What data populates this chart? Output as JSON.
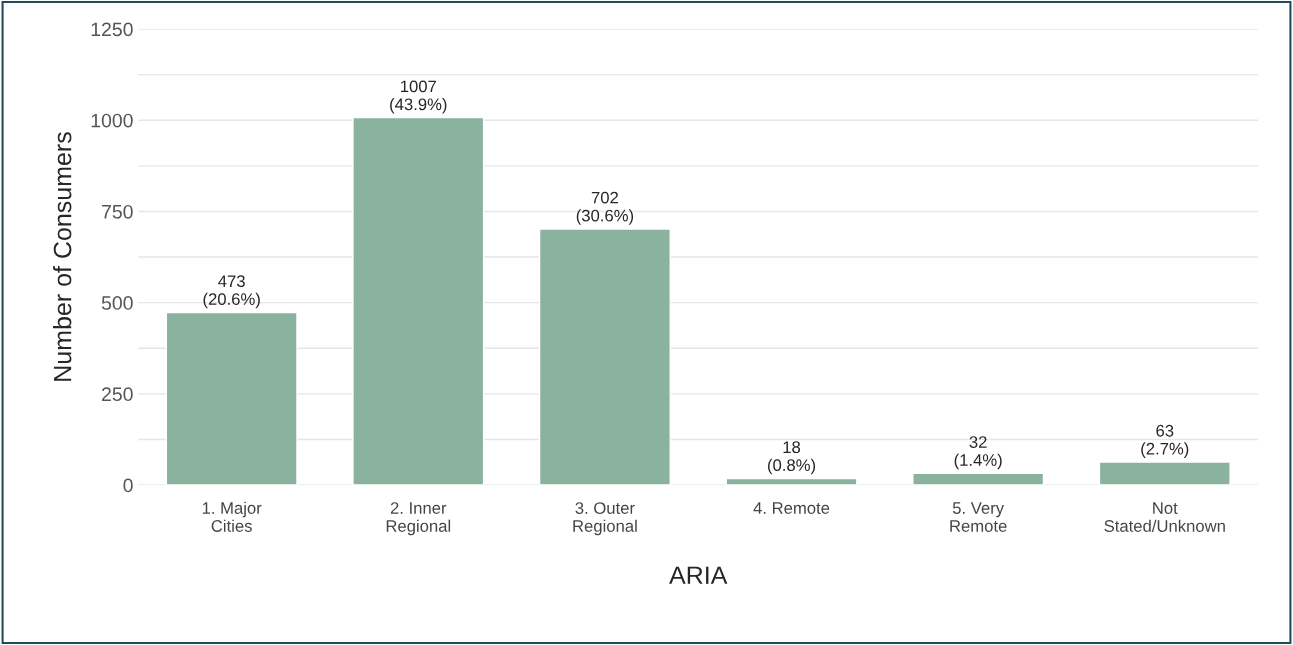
{
  "chart_data": {
    "type": "bar",
    "categories": [
      "1. Major\nCities",
      "2. Inner\nRegional",
      "3. Outer\nRegional",
      "4. Remote",
      "5. Very\nRemote",
      "Not\nStated/Unknown"
    ],
    "values": [
      473,
      1007,
      702,
      18,
      32,
      63
    ],
    "value_labels": [
      "473\n(20.6%)",
      "1007\n(43.9%)",
      "702\n(30.6%)",
      "18\n(0.8%)",
      "32\n(1.4%)",
      "63\n(2.7%)"
    ],
    "color": "#8ab29e",
    "xlabel": "ARIA",
    "ylabel": "Number of Consumers",
    "ylim": [
      0,
      1250
    ],
    "yticks": [
      0,
      {
        "value": 125,
        "label": null
      },
      250,
      {
        "value": 375,
        "label": null
      },
      500,
      {
        "value": 625,
        "label": null
      },
      750,
      {
        "value": 875,
        "label": null
      },
      1000,
      {
        "value": 1125,
        "label": null
      },
      1250
    ],
    "grid": "y"
  }
}
